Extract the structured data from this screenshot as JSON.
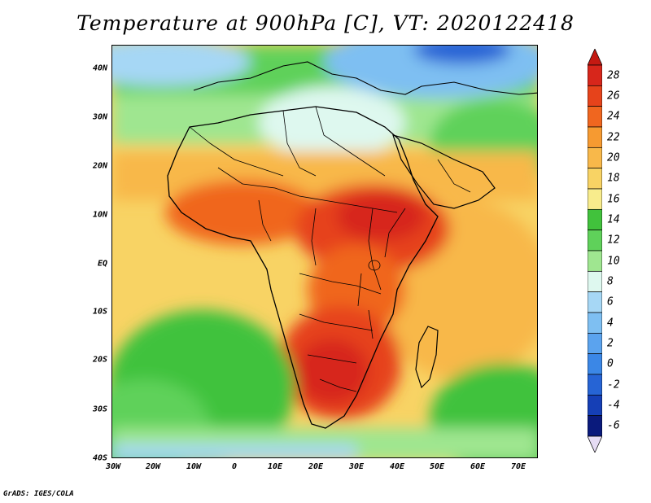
{
  "title": "Temperature at 900hPa [C], VT: 2020122418",
  "credit": "GrADS: IGES/COLA",
  "y_axis_labels": [
    "40N",
    "30N",
    "20N",
    "10N",
    "EQ",
    "10S",
    "20S",
    "30S",
    "40S"
  ],
  "x_axis_labels": [
    "30W",
    "20W",
    "10W",
    "0",
    "10E",
    "20E",
    "30E",
    "40E",
    "50E",
    "60E",
    "70E"
  ],
  "colorbar": {
    "labels": [
      "28",
      "26",
      "24",
      "22",
      "20",
      "18",
      "16",
      "14",
      "12",
      "10",
      "8",
      "6",
      "4",
      "2",
      "0",
      "-2",
      "-4",
      "-6"
    ],
    "colors": [
      "#d7261b",
      "#e6431b",
      "#f0661f",
      "#f69a31",
      "#f8b84a",
      "#f8d364",
      "#f8ec8c",
      "#41c23c",
      "#5fd15a",
      "#9fe690",
      "#def8ef",
      "#a6d7f5",
      "#7ebff2",
      "#5ba3ee",
      "#3b87e6",
      "#2664d5",
      "#153fb6",
      "#0a1a7c"
    ],
    "over_color": "#c41912",
    "under_color": "#e6dcf4"
  }
}
